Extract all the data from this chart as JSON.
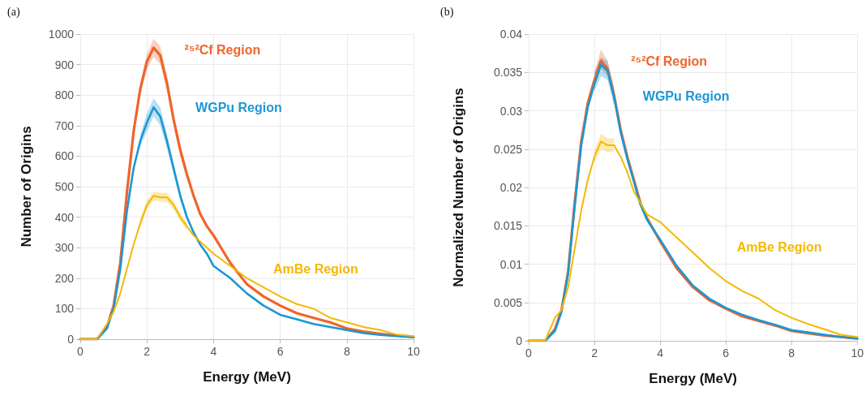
{
  "chart_data": [
    {
      "type": "line",
      "title": "(a)",
      "xlabel": "Energy (MeV)",
      "ylabel": "Number of Origins",
      "xlim": [
        0,
        10
      ],
      "xticks": [
        0,
        2,
        4,
        6,
        8,
        10
      ],
      "ylim": [
        0,
        1000
      ],
      "yticks": [
        0,
        100,
        200,
        300,
        400,
        500,
        600,
        700,
        800,
        900,
        1000
      ],
      "grid": true,
      "legend": false,
      "marker": "none",
      "line_style": "solid",
      "x": [
        0,
        0.5,
        0.8,
        1.0,
        1.2,
        1.4,
        1.6,
        1.8,
        2.0,
        2.2,
        2.4,
        2.6,
        2.8,
        3.0,
        3.2,
        3.4,
        3.6,
        3.8,
        4.0,
        4.5,
        5,
        5.5,
        6,
        6.5,
        7,
        7.5,
        8,
        8.5,
        9,
        9.5,
        10
      ],
      "series": [
        {
          "name": "²⁵²Cf Region",
          "color": "#f0642a",
          "values": [
            0,
            0,
            40,
            110,
            250,
            480,
            680,
            820,
            910,
            955,
            930,
            840,
            720,
            620,
            540,
            470,
            410,
            370,
            340,
            250,
            180,
            140,
            110,
            85,
            70,
            55,
            35,
            25,
            18,
            12,
            8
          ],
          "lower": [
            null,
            null,
            null,
            null,
            null,
            null,
            null,
            800,
            885,
            925,
            900,
            815,
            700,
            600,
            525,
            null,
            null,
            null,
            null,
            null,
            null,
            null,
            null,
            null,
            null,
            null,
            null,
            null,
            null,
            null,
            null
          ],
          "upper": [
            null,
            null,
            null,
            null,
            null,
            null,
            null,
            840,
            935,
            985,
            960,
            865,
            740,
            640,
            555,
            null,
            null,
            null,
            null,
            null,
            null,
            null,
            null,
            null,
            null,
            null,
            null,
            null,
            null,
            null,
            null
          ]
        },
        {
          "name": "WGPu Region",
          "color": "#1a97d5",
          "values": [
            0,
            0,
            35,
            100,
            230,
            420,
            560,
            650,
            710,
            760,
            730,
            650,
            560,
            470,
            400,
            350,
            310,
            280,
            240,
            200,
            150,
            110,
            80,
            65,
            50,
            40,
            30,
            20,
            14,
            10,
            6
          ],
          "lower": [
            null,
            null,
            null,
            null,
            null,
            null,
            null,
            630,
            680,
            730,
            700,
            625,
            540,
            455,
            388,
            null,
            null,
            null,
            null,
            null,
            null,
            null,
            null,
            null,
            null,
            null,
            null,
            null,
            null,
            null,
            null
          ],
          "upper": [
            null,
            null,
            null,
            null,
            null,
            null,
            null,
            670,
            740,
            790,
            760,
            675,
            580,
            485,
            412,
            null,
            null,
            null,
            null,
            null,
            null,
            null,
            null,
            null,
            null,
            null,
            null,
            null,
            null,
            null,
            null
          ]
        },
        {
          "name": "AmBe Region",
          "color": "#f5b800",
          "values": [
            0,
            0,
            50,
            90,
            150,
            230,
            310,
            380,
            440,
            470,
            465,
            465,
            440,
            400,
            370,
            340,
            320,
            300,
            280,
            240,
            200,
            170,
            140,
            115,
            100,
            70,
            55,
            40,
            30,
            15,
            10
          ],
          "lower": [
            null,
            null,
            null,
            null,
            null,
            null,
            null,
            365,
            425,
            455,
            450,
            450,
            425,
            388,
            358,
            null,
            null,
            null,
            null,
            null,
            null,
            null,
            null,
            null,
            null,
            null,
            null,
            null,
            null,
            null,
            null
          ],
          "upper": [
            null,
            null,
            null,
            null,
            null,
            null,
            null,
            395,
            455,
            485,
            480,
            480,
            455,
            412,
            382,
            null,
            null,
            null,
            null,
            null,
            null,
            null,
            null,
            null,
            null,
            null,
            null,
            null,
            null,
            null,
            null
          ]
        }
      ]
    },
    {
      "type": "line",
      "title": "(b)",
      "xlabel": "Energy (MeV)",
      "ylabel": "Normalized Number of Origins",
      "xlim": [
        0,
        10
      ],
      "xticks": [
        0,
        2,
        4,
        6,
        8,
        10
      ],
      "ylim": [
        0,
        0.04
      ],
      "yticks": [
        0,
        0.005,
        0.01,
        0.015,
        0.02,
        0.025,
        0.03,
        0.035,
        0.04
      ],
      "grid": true,
      "legend": false,
      "marker": "none",
      "line_style": "solid",
      "x": [
        0,
        0.5,
        0.8,
        1.0,
        1.2,
        1.4,
        1.6,
        1.8,
        2.0,
        2.2,
        2.4,
        2.6,
        2.8,
        3.0,
        3.2,
        3.4,
        3.6,
        3.8,
        4.0,
        4.5,
        5,
        5.5,
        6,
        6.5,
        7,
        7.5,
        8,
        8.5,
        9,
        9.5,
        10
      ],
      "series": [
        {
          "name": "²⁵²Cf Region",
          "color": "#f0642a",
          "values": [
            0,
            0,
            0.0015,
            0.004,
            0.009,
            0.018,
            0.026,
            0.031,
            0.034,
            0.0365,
            0.0355,
            0.032,
            0.0275,
            0.024,
            0.021,
            0.018,
            0.016,
            0.0145,
            0.013,
            0.0095,
            0.007,
            0.0053,
            0.0042,
            0.0032,
            0.0026,
            0.002,
            0.0013,
            0.001,
            0.0007,
            0.0005,
            0.0003
          ],
          "lower": [
            null,
            null,
            null,
            null,
            null,
            null,
            null,
            null,
            0.033,
            0.0355,
            0.0345,
            0.031,
            null,
            null,
            null,
            null,
            null,
            null,
            null,
            null,
            null,
            null,
            null,
            null,
            null,
            null,
            null,
            null,
            null,
            null,
            null
          ],
          "upper": [
            null,
            null,
            null,
            null,
            null,
            null,
            null,
            null,
            0.035,
            0.038,
            0.0365,
            0.033,
            null,
            null,
            null,
            null,
            null,
            null,
            null,
            null,
            null,
            null,
            null,
            null,
            null,
            null,
            null,
            null,
            null,
            null,
            null
          ]
        },
        {
          "name": "WGPu Region",
          "color": "#1a97d5",
          "values": [
            0,
            0,
            0.0013,
            0.0038,
            0.0088,
            0.0175,
            0.0255,
            0.0305,
            0.0335,
            0.036,
            0.0352,
            0.0318,
            0.0272,
            0.0238,
            0.0208,
            0.0178,
            0.0158,
            0.0145,
            0.0132,
            0.0098,
            0.0072,
            0.0055,
            0.0043,
            0.0034,
            0.0027,
            0.0021,
            0.0014,
            0.0011,
            0.0008,
            0.0005,
            0.0003
          ],
          "lower": [
            null,
            null,
            null,
            null,
            null,
            null,
            null,
            null,
            0.0325,
            0.0345,
            0.034,
            0.0305,
            null,
            null,
            null,
            null,
            null,
            null,
            null,
            null,
            null,
            null,
            null,
            null,
            null,
            null,
            null,
            null,
            null,
            null,
            null
          ],
          "upper": [
            null,
            null,
            null,
            null,
            null,
            null,
            null,
            null,
            0.035,
            0.037,
            0.0365,
            0.033,
            null,
            null,
            null,
            null,
            null,
            null,
            null,
            null,
            null,
            null,
            null,
            null,
            null,
            null,
            null,
            null,
            null,
            null,
            null
          ]
        },
        {
          "name": "AmBe Region",
          "color": "#f5b800",
          "values": [
            0,
            0,
            0.003,
            0.004,
            0.007,
            0.012,
            0.017,
            0.021,
            0.024,
            0.026,
            0.0255,
            0.0255,
            0.024,
            0.022,
            0.0195,
            0.018,
            0.0165,
            0.016,
            0.0155,
            0.0135,
            0.0115,
            0.0095,
            0.0078,
            0.0065,
            0.0055,
            0.004,
            0.003,
            0.0022,
            0.0015,
            0.0008,
            0.0005
          ],
          "lower": [
            null,
            null,
            null,
            null,
            null,
            null,
            null,
            null,
            0.0232,
            0.025,
            0.0246,
            0.0246,
            null,
            null,
            null,
            null,
            null,
            null,
            null,
            null,
            null,
            null,
            null,
            null,
            null,
            null,
            null,
            null,
            null,
            null,
            null
          ],
          "upper": [
            null,
            null,
            null,
            null,
            null,
            null,
            null,
            null,
            0.0248,
            0.027,
            0.0264,
            0.0264,
            null,
            null,
            null,
            null,
            null,
            null,
            null,
            null,
            null,
            null,
            null,
            null,
            null,
            null,
            null,
            null,
            null,
            null,
            null
          ]
        }
      ]
    }
  ]
}
